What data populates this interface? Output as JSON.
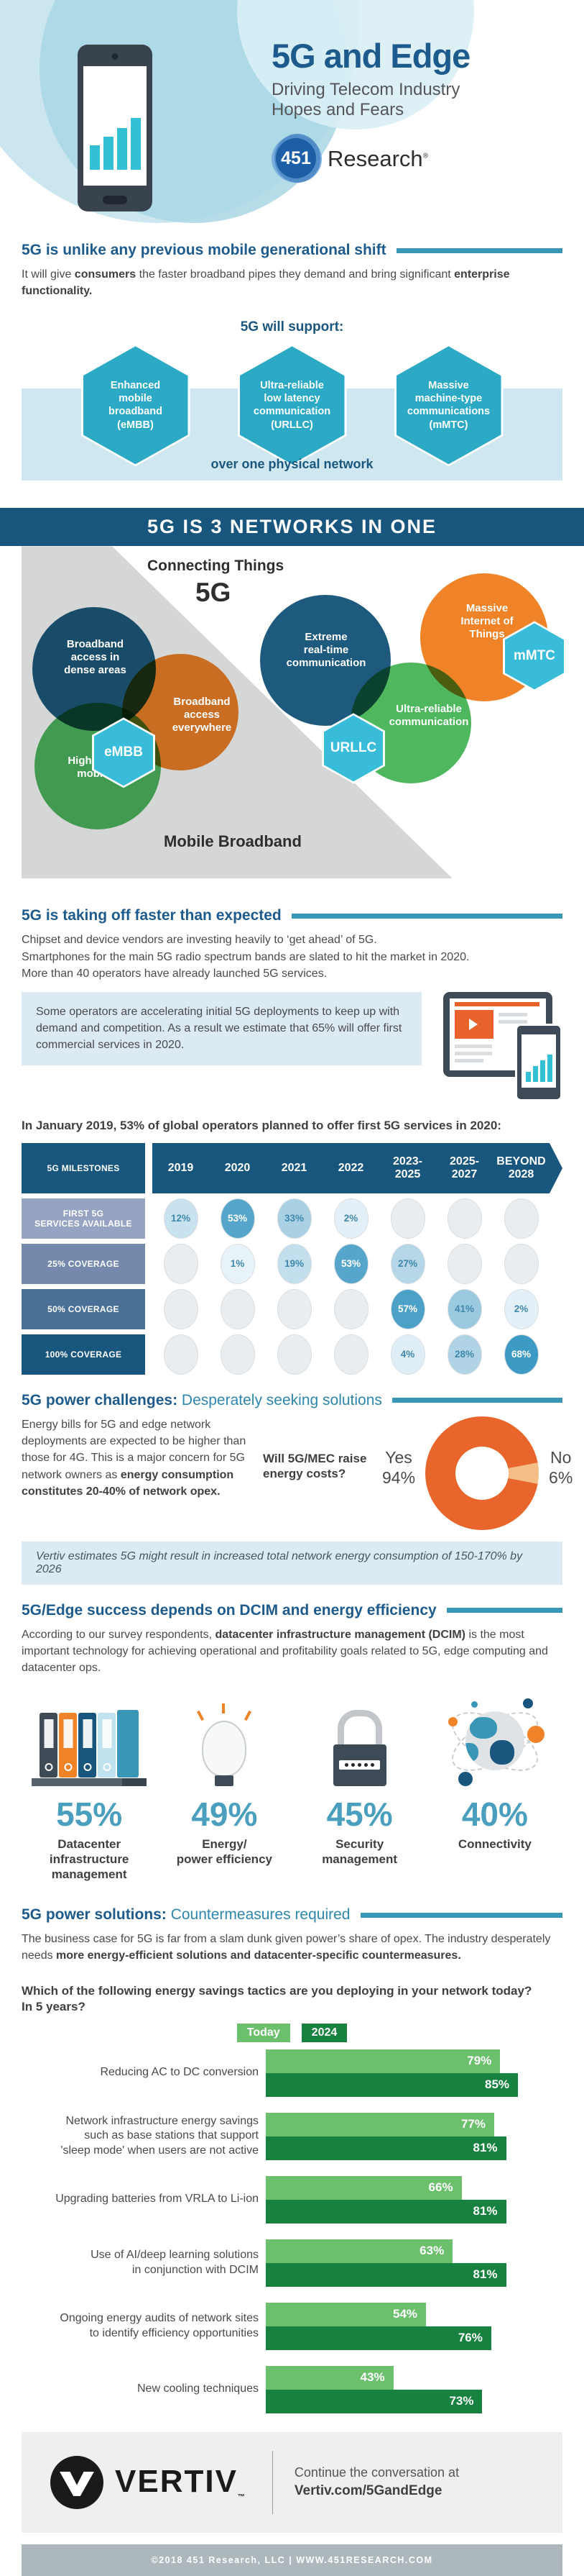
{
  "header": {
    "title": "5G and Edge",
    "subtitle": "Driving Telecom Industry\nHopes and Fears",
    "logo_number": "451",
    "logo_text": "Research",
    "logo_reg": "®"
  },
  "colors": {
    "dark_blue": "#1A567E",
    "heading_blue": "#1E5B8D",
    "light_heading_blue": "#2E86AE",
    "teal_hex": "#2BA9C5",
    "cyan_hex": "#39BCD9",
    "orange": "#F08227",
    "green": "#4FB85F",
    "rule_teal": "#3A96B6",
    "band_blue": "#CFE7F1",
    "callout_blue": "#DCEAF3",
    "donut_orange": "#E8662C",
    "donut_light_orange": "#F6BE87",
    "stat_teal": "#4A9FBE",
    "bar_light_green": "#6CC06D",
    "bar_dark_green": "#17813F",
    "footer_gray": "#EFEFEF",
    "copyright_gray": "#ACB8BC"
  },
  "sections": {
    "intro": {
      "heading": "5G is unlike any previous mobile generational shift",
      "body": [
        {
          "t": "It will give ",
          "b": 1
        },
        {
          "t": "consumers",
          "b": 2
        },
        {
          "t": " the faster broadband pipes they demand and bring significant ",
          "b": 1
        },
        {
          "t": "enterprise functionality.",
          "b": 2
        }
      ]
    },
    "support": {
      "title": "5G will support:",
      "hexagons": [
        "Enhanced\nmobile\nbroadband\n(eMBB)",
        "Ultra-reliable\nlow latency\ncommunication\n(URLLC)",
        "Massive\nmachine-type\ncommunications\n(mMTC)"
      ],
      "band_note": "over one physical network"
    },
    "networks": {
      "banner": "5G IS 3 NETWORKS IN ONE",
      "venn": {
        "connecting": "Connecting Things",
        "fiveg": "5G",
        "dense": "Broadband\naccess in\ndense areas",
        "everywhere": "Broadband\naccess\neverywhere",
        "mobility": "Higher user\nmobility",
        "embb": "eMBB",
        "extreme": "Extreme\nreal-time\ncommunication",
        "ultra": "Ultra-reliable\ncommunication",
        "urllc": "URLLC",
        "miot": "Massive\nInternet of\nThings",
        "mmtc": "mMTC",
        "mobile": "Mobile Broadband"
      }
    },
    "takeoff": {
      "heading": "5G is taking off faster than expected",
      "body": "Chipset and device vendors are investing heavily to ‘get ahead’ of 5G.\nSmartphones for the main 5G radio spectrum bands are slated to hit the market in 2020.\nMore than 40 operators have already launched 5G services.",
      "callout": "Some operators are accelerating initial 5G deployments to keep up with demand and competition. As a result we estimate that 65% will offer first commercial services in 2020.",
      "leadin": "In January 2019, 53% of global operators planned to offer first 5G services in 2020:"
    },
    "challenges": {
      "heading_bold": "5G power challenges:",
      "heading_light": " Desperately seeking solutions",
      "body": [
        {
          "t": "Energy bills for 5G and edge network deployments are expected to be higher than those for 4G. This is a major concern for 5G network owners as ",
          "b": 1
        },
        {
          "t": "energy consumption constitutes 20-40% of network opex.",
          "b": 2
        }
      ],
      "yes_word": "Yes",
      "yes_pct": "94%",
      "no_word": "No",
      "no_pct": "6%",
      "note": "Vertiv estimates 5G might result in increased total network energy consumption of 150-170% by 2026"
    },
    "dcim": {
      "heading": "5G/Edge success depends on DCIM and energy efficiency",
      "body": [
        {
          "t": "According to our survey respondents, ",
          "b": 1
        },
        {
          "t": "datacenter infrastructure management (DCIM)",
          "b": 2
        },
        {
          "t": " is the most important technology for achieving operational and profitability goals related to 5G, edge computing and datacenter ops.",
          "b": 1
        }
      ],
      "stats": [
        {
          "pct": "55%",
          "label": "Datacenter\ninfrastructure\nmanagement",
          "icon": "binders-icon"
        },
        {
          "pct": "49%",
          "label": "Energy/\npower efficiency",
          "icon": "lightbulb-icon"
        },
        {
          "pct": "45%",
          "label": "Security\nmanagement",
          "icon": "padlock-icon"
        },
        {
          "pct": "40%",
          "label": "Connectivity",
          "icon": "globe-icon"
        }
      ]
    },
    "solutions": {
      "heading_bold": "5G power solutions:",
      "heading_light": " Countermeasures required",
      "body": [
        {
          "t": "The business case for 5G is far from a slam dunk given power’s share of opex. The industry desperately needs ",
          "b": 1
        },
        {
          "t": "more energy-efficient solutions and datacenter-specific countermeasures.",
          "b": 2
        }
      ],
      "question": "Which of the following energy savings tactics are you deploying in your network today?\nIn 5 years?"
    }
  },
  "chart_data": {
    "milestones": {
      "type": "heatmap",
      "title": "5G MILESTONES",
      "columns": [
        "2019",
        "2020",
        "2021",
        "2022",
        "2023-\n2025",
        "2025-\n2027",
        "BEYOND\n2028"
      ],
      "rows": [
        {
          "label": "FIRST 5G\nSERVICES AVAILABLE",
          "color": "#97A3C3",
          "values": [
            "12%",
            "53%",
            "33%",
            "2%",
            "",
            "",
            ""
          ]
        },
        {
          "label": "25% COVERAGE",
          "color": "#7489AC",
          "values": [
            "",
            "1%",
            "19%",
            "53%",
            "27%",
            "",
            ""
          ]
        },
        {
          "label": "50% COVERAGE",
          "color": "#4A7095",
          "values": [
            "",
            "",
            "",
            "",
            "57%",
            "41%",
            "2%"
          ]
        },
        {
          "label": "100% COVERAGE",
          "color": "#19567E",
          "values": [
            "",
            "",
            "",
            "",
            "4%",
            "28%",
            "68%"
          ]
        }
      ],
      "bubble_colors": {
        "": "#E9EDF0",
        "1%": "#E8F2F9",
        "2%": "#E4F0F8",
        "4%": "#DEEDF6",
        "12%": "#C9E2EF",
        "19%": "#C3DFEE",
        "27%": "#B5D7E8",
        "28%": "#B0D4E6",
        "33%": "#A9D0E3",
        "41%": "#9BC9DF",
        "53%": "#55A6CA",
        "57%": "#4BA1C8",
        "68%": "#3D9AC4"
      },
      "white_text_values": [
        "53%",
        "57%",
        "68%"
      ]
    },
    "energy_costs_pie": {
      "type": "pie",
      "question": "Will 5G/MEC raise\nenergy costs?",
      "slices": [
        {
          "label": "Yes",
          "value": 94,
          "color": "#E8662C"
        },
        {
          "label": "No",
          "value": 6,
          "color": "#F6BE87"
        }
      ]
    },
    "tactics_bar": {
      "type": "bar",
      "legend": [
        "Today",
        "2024"
      ],
      "colors": [
        "#6CC06D",
        "#17813F"
      ],
      "categories": [
        "Reducing AC to DC conversion",
        "Network infrastructure energy savings\nsuch as base stations that support\n'sleep mode' when users are not active",
        "Upgrading batteries from VRLA to Li-ion",
        "Use of AI/deep learning solutions\nin conjunction with DCIM",
        "Ongoing energy audits of network sites\nto identify efficiency opportunities",
        "New cooling techniques"
      ],
      "series": [
        {
          "name": "Today",
          "values": [
            79,
            77,
            66,
            63,
            54,
            43
          ]
        },
        {
          "name": "2024",
          "values": [
            85,
            81,
            81,
            81,
            76,
            73
          ]
        }
      ]
    }
  },
  "footer": {
    "brand": "VERTIV",
    "tm": "™",
    "cta_line1": "Continue the conversation at",
    "cta_line2": "Vertiv.com/5GandEdge",
    "copyright": "©2018 451 Research, LLC | WWW.451RESEARCH.COM"
  }
}
